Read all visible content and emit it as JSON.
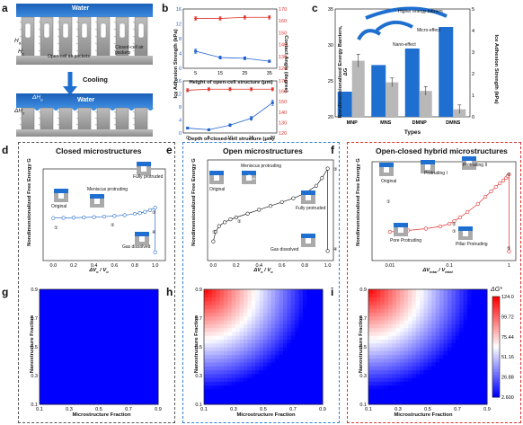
{
  "panel_letters": [
    "a",
    "b",
    "c",
    "d",
    "e",
    "f",
    "g",
    "h",
    "i"
  ],
  "panel_a": {
    "water_label": "Water",
    "water_label_bottom": "Water",
    "open_cell_label": "Open-cell air pockets",
    "closed_cell_label": "Closed-cell air pockets",
    "cooling_label": "Cooling",
    "h_o": "H",
    "h_o_sub": "o",
    "h_c": "H",
    "h_c_sub": "c",
    "dh_o": "ΔH",
    "dh_o_sub": "o",
    "dh_c": "ΔH",
    "dh_c_sub": "c"
  },
  "panel_b": {
    "ylabel_left": "Ice Adhesion Strength (kPa)",
    "ylabel_right": "Contact Angle (degree)",
    "xlabel_top": "Height of open-cell structure (μm)",
    "xlabel_bottom": "Depth of closed-cell structure (μm)",
    "colors": {
      "left": "#1f5fd0",
      "right": "#e0302a"
    }
  },
  "panel_c": {
    "ylabel_left": "Nondimensionalized Energy Barriers, ΔG",
    "ylabel_right": "Ice Adhesion Strength (kPa)",
    "xlabel": "Types",
    "ann_high": "Higher energy barriers",
    "ann_micro": "Micro-effect",
    "ann_nano": "Nano-effect",
    "colors": {
      "energy": "#1f6fd0",
      "adhesion": "#b8b8b8"
    }
  },
  "panel_d": {
    "title": "Closed microstructures",
    "ylabel": "Nondimensionalized Free Energy G",
    "xlabel": "ΔV",
    "xlabel_sub1": "o",
    "xlabel_mid": " / V",
    "xlabel_sub2": "o",
    "states": [
      "Original",
      "Meniscus protruding",
      "Fully protruded",
      "Gas dissolved"
    ],
    "state_numbers": [
      "①",
      "②",
      "③",
      "④"
    ],
    "theta_label": "θ",
    "theta_sub": "adv"
  },
  "panel_e": {
    "title": "Open microstructures",
    "ylabel": "Nondimensionalized Free Energy G",
    "xlabel": "ΔV",
    "xlabel_sub1": "o",
    "xlabel_mid": " / V",
    "xlabel_sub2": "o",
    "states": [
      "Original",
      "Meniscus protruding",
      "Fully protruded",
      "Gas dissolved"
    ],
    "state_numbers": [
      "①",
      "②",
      "③",
      "④"
    ],
    "theta_label": "θ",
    "theta_sub": "adv"
  },
  "panel_f": {
    "title": "Open-closed hybrid microstructures",
    "ylabel": "Nondimensionalized Free Energy G",
    "xlabel": "ΔV",
    "xlabel_sub1": "total",
    "xlabel_mid": " / V",
    "xlabel_sub2": "total",
    "states": [
      "Original",
      "Protruding I",
      "Protruding II",
      "Pore Protruding",
      "Pillar Protruding"
    ],
    "state_numbers": [
      "①",
      "②",
      "③",
      "④",
      "⑤"
    ]
  },
  "heatmaps": {
    "ylabel": "Nanostructure Fraction",
    "xlabel": "Microstructure Fraction",
    "colorbar_title": "ΔG*",
    "colorbar_ticks": [
      "124.0",
      "99.72",
      "75.44",
      "51.16",
      "26.88",
      "2.600"
    ],
    "colors": {
      "low": "#0000ff",
      "mid": "#ffffff",
      "high": "#ff0000"
    }
  },
  "box_colors": {
    "closed": "#555555",
    "open": "#3a7fd0",
    "hybrid": "#e03030"
  },
  "chart_data": [
    {
      "type": "line",
      "panel": "b-top",
      "xlabel": "Height of open-cell structure (μm)",
      "x": [
        5,
        15,
        25,
        35
      ],
      "xlim": [
        0,
        38
      ],
      "series": [
        {
          "axis": "left",
          "values": [
            4.6,
            2.9,
            2.7,
            1.9
          ],
          "errors": [
            0.6,
            0.4,
            0.4,
            0.3
          ]
        },
        {
          "axis": "right",
          "values": [
            162,
            162,
            163,
            163
          ],
          "errors": [
            1.5,
            1.5,
            1.5,
            1.5
          ]
        }
      ],
      "ylim_left": [
        0,
        16
      ],
      "yticks_left": [
        0,
        4,
        8,
        12,
        16
      ],
      "ylim_right": [
        120,
        170
      ],
      "yticks_right": [
        120,
        130,
        140,
        150,
        160,
        170
      ]
    },
    {
      "type": "line",
      "panel": "b-bottom",
      "xlabel": "Depth of closed-cell structure (μm)",
      "x": [
        0,
        5,
        10,
        15,
        20
      ],
      "xlim": [
        -1,
        21
      ],
      "series": [
        {
          "axis": "left",
          "values": [
            1.5,
            1.0,
            2.4,
            4.5,
            9.3
          ],
          "errors": [
            0.3,
            0.3,
            0.4,
            0.6,
            0.8
          ]
        },
        {
          "axis": "right",
          "values": [
            161,
            162,
            162,
            162,
            162
          ],
          "errors": [
            1.5,
            1.5,
            1.5,
            1.5,
            1.5
          ]
        }
      ],
      "ylim_left": [
        0,
        16
      ],
      "yticks_left": [
        0,
        4,
        8,
        12,
        16
      ],
      "ylim_right": [
        120,
        170
      ],
      "yticks_right": [
        120,
        130,
        140,
        150,
        160,
        170
      ]
    },
    {
      "type": "bar",
      "panel": "c",
      "categories": [
        "MNP",
        "MNS",
        "DMNP",
        "DMNS"
      ],
      "series": [
        {
          "name": "Nondimensionalized Energy Barriers",
          "axis": "left",
          "values": [
            23.5,
            27.2,
            29.5,
            32.5
          ]
        },
        {
          "name": "Ice Adhesion Strength",
          "axis": "right",
          "values": [
            2.6,
            1.6,
            1.2,
            0.35
          ],
          "errors": [
            0.3,
            0.2,
            0.2,
            0.2
          ]
        }
      ],
      "ylim_left": [
        20,
        35
      ],
      "yticks_left": [
        20,
        25,
        30,
        35
      ],
      "ylim_right": [
        0,
        5
      ],
      "yticks_right": [
        0,
        1,
        2,
        3,
        4,
        5
      ]
    },
    {
      "type": "line",
      "panel": "d",
      "x": [
        0.0,
        0.1,
        0.2,
        0.3,
        0.4,
        0.5,
        0.6,
        0.7,
        0.8,
        0.85,
        0.9,
        0.95,
        1.0,
        1.0
      ],
      "values": [
        0.1,
        0.12,
        0.15,
        0.18,
        0.22,
        0.28,
        0.35,
        0.45,
        0.6,
        0.7,
        0.85,
        1.05,
        1.35,
        -4.0
      ],
      "xlim": [
        -0.1,
        1.1
      ],
      "xticks": [
        0.0,
        0.2,
        0.4,
        0.6,
        0.8,
        1.0
      ],
      "ylim": [
        -5,
        6
      ]
    },
    {
      "type": "line",
      "panel": "e",
      "x": [
        0.0,
        0.02,
        0.05,
        0.1,
        0.15,
        0.2,
        0.3,
        0.4,
        0.5,
        0.6,
        0.7,
        0.8,
        0.9,
        0.95,
        1.0,
        1.0
      ],
      "values": [
        0.0,
        1.0,
        1.6,
        2.0,
        2.3,
        2.5,
        2.9,
        3.3,
        3.7,
        4.1,
        4.5,
        5.0,
        5.8,
        6.6,
        7.6,
        -1.0
      ],
      "xlim": [
        -0.05,
        1.05
      ],
      "xticks": [
        0.0,
        0.2,
        0.4,
        0.6,
        0.8,
        1.0
      ],
      "ylim": [
        -2,
        8.5
      ]
    },
    {
      "type": "line",
      "panel": "f",
      "x": [
        0.01,
        0.02,
        0.04,
        0.07,
        0.1,
        0.12,
        0.15,
        0.2,
        0.3,
        0.4,
        0.5,
        0.6,
        0.7,
        0.8,
        0.9,
        0.95,
        1.0,
        1.0
      ],
      "values": [
        0.2,
        0.35,
        0.55,
        0.8,
        1.1,
        1.4,
        1.8,
        2.4,
        3.3,
        4.1,
        4.7,
        5.2,
        5.6,
        5.9,
        6.2,
        6.4,
        6.6,
        -2.0
      ],
      "xscale": "log",
      "xlim": [
        0.005,
        1.3
      ],
      "xticks": [
        0.01,
        0.1,
        1
      ],
      "ylim": [
        -3,
        8
      ]
    },
    {
      "type": "heatmap",
      "panel": "g",
      "xlabel": "Microstructure Fraction",
      "ylabel": "Nanostructure Fraction",
      "xticks": [
        0.1,
        0.3,
        0.5,
        0.7,
        0.9
      ],
      "yticks": [
        0.1,
        0.3,
        0.5,
        0.7,
        0.9
      ],
      "value_range": [
        2.6,
        124.0
      ],
      "values": "near-constant ~2.6 (uniform blue)"
    },
    {
      "type": "heatmap",
      "panel": "h",
      "xlabel": "Microstructure Fraction",
      "ylabel": "Nanostructure Fraction",
      "xticks": [
        0.1,
        0.3,
        0.5,
        0.7,
        0.9
      ],
      "yticks": [
        0.1,
        0.3,
        0.5,
        0.7,
        0.9
      ],
      "value_range": [
        2.6,
        124.0
      ],
      "max_at": "x=0.1,y=0.9 (~124)",
      "min_at": "x=0.9,y=0.1 (~2.6)"
    },
    {
      "type": "heatmap",
      "panel": "i",
      "xlabel": "Microstructure Fraction",
      "ylabel": "Nanostructure Fraction",
      "xticks": [
        0.1,
        0.3,
        0.5,
        0.7,
        0.9
      ],
      "yticks": [
        0.1,
        0.3,
        0.5,
        0.7,
        0.9
      ],
      "value_range": [
        2.6,
        124.0
      ],
      "max_at": "x=0.1,y=0.9 (~124)",
      "min_at": "x=0.9,y=0.1 (~2.6)"
    }
  ]
}
